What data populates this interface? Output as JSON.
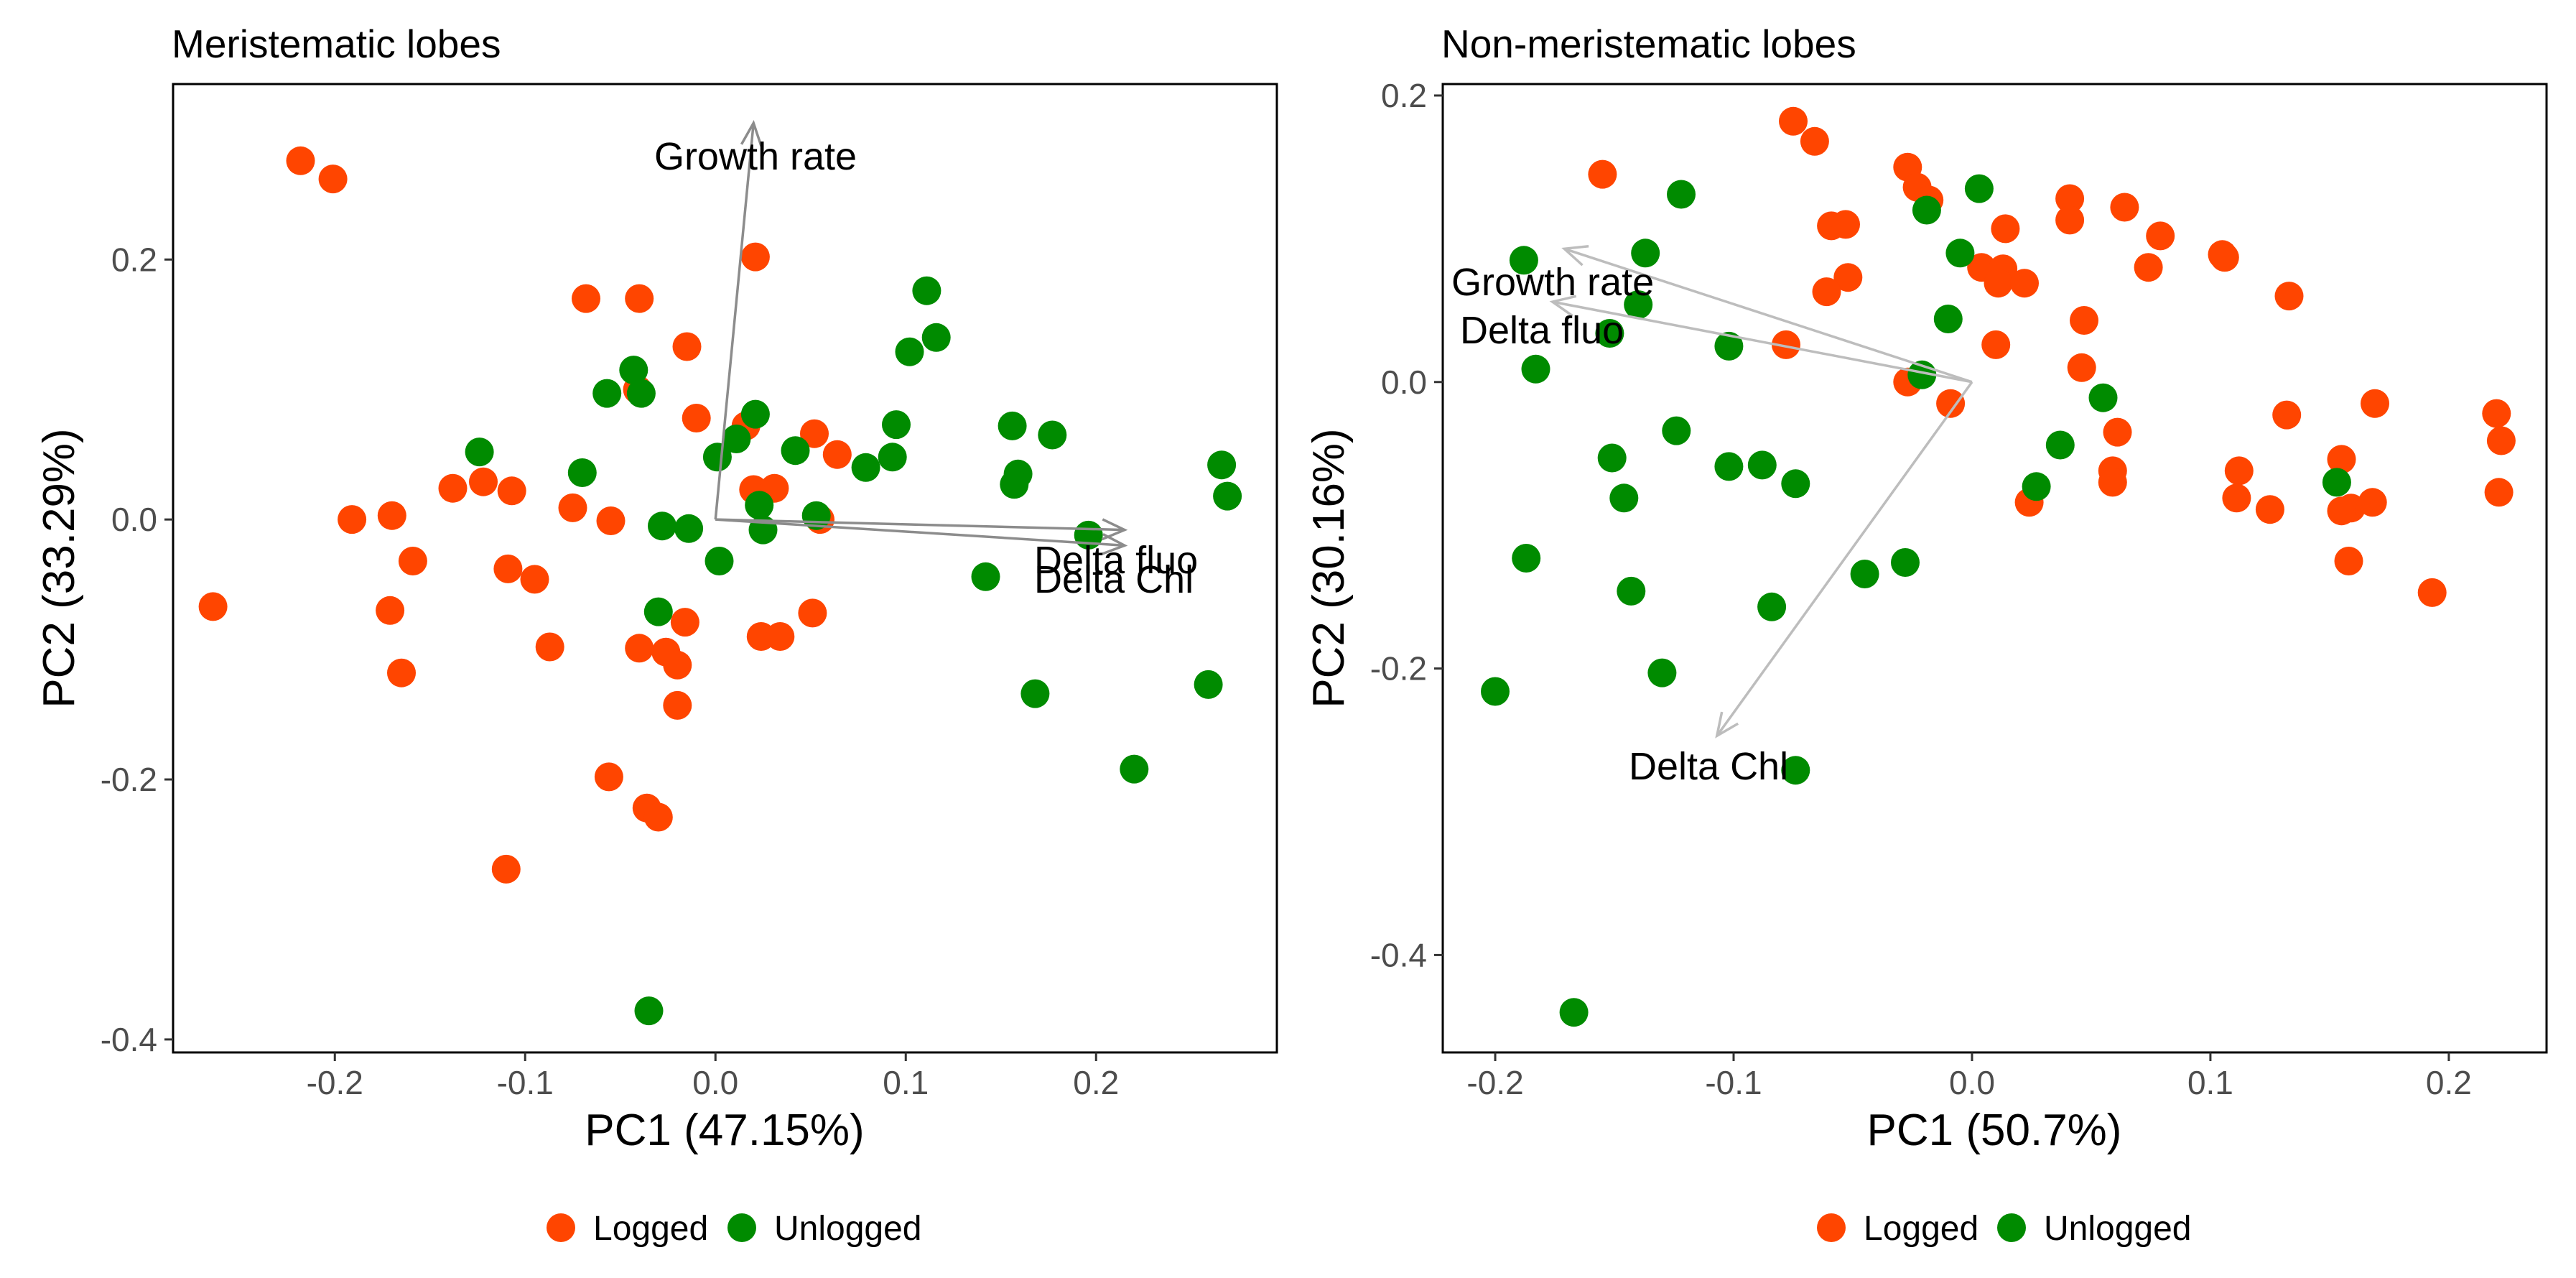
{
  "colors": {
    "logged": "#FF4500",
    "unlogged": "#008B00",
    "arrow_left": "#8c8c8c",
    "arrow_right": "#bdbdbd",
    "axis": "#000000",
    "tick_text": "#4d4d4d"
  },
  "legend": {
    "items": [
      "Logged",
      "Unlogged"
    ]
  },
  "chart_data": [
    {
      "type": "scatter",
      "title": "Meristematic lobes",
      "xlabel": "PC1 (47.15%)",
      "ylabel": "PC2 (33.29%)",
      "xlim": [
        -0.285,
        0.295
      ],
      "ylim": [
        -0.41,
        0.335
      ],
      "xticks": [
        -0.2,
        -0.1,
        0.0,
        0.1,
        0.2
      ],
      "xtick_labels": [
        "-0.2",
        "-0.1",
        "0.0",
        "0.1",
        "0.2"
      ],
      "yticks": [
        -0.4,
        -0.2,
        0.0,
        0.2
      ],
      "ytick_labels": [
        "-0.4",
        "-0.2",
        "0.0",
        "0.2"
      ],
      "grid": false,
      "legend_position": "bottom",
      "series": [
        {
          "name": "Logged",
          "points": [
            [
              -0.218,
              0.276
            ],
            [
              -0.201,
              0.262
            ],
            [
              0.021,
              0.202
            ],
            [
              -0.068,
              0.17
            ],
            [
              -0.04,
              0.17
            ],
            [
              -0.015,
              0.133
            ],
            [
              -0.041,
              0.1
            ],
            [
              -0.01,
              0.078
            ],
            [
              0.016,
              0.072
            ],
            [
              0.052,
              0.066
            ],
            [
              0.064,
              0.05
            ],
            [
              -0.138,
              0.024
            ],
            [
              -0.122,
              0.029
            ],
            [
              -0.107,
              0.022
            ],
            [
              0.02,
              0.023
            ],
            [
              0.031,
              0.024
            ],
            [
              -0.075,
              0.009
            ],
            [
              -0.191,
              0.0
            ],
            [
              -0.17,
              0.003
            ],
            [
              -0.055,
              -0.001
            ],
            [
              0.055,
              0.0
            ],
            [
              -0.159,
              -0.032
            ],
            [
              -0.109,
              -0.038
            ],
            [
              -0.095,
              -0.046
            ],
            [
              -0.171,
              -0.07
            ],
            [
              -0.264,
              -0.067
            ],
            [
              -0.016,
              -0.079
            ],
            [
              0.051,
              -0.072
            ],
            [
              -0.087,
              -0.098
            ],
            [
              -0.04,
              -0.099
            ],
            [
              -0.026,
              -0.102
            ],
            [
              -0.02,
              -0.112
            ],
            [
              0.024,
              -0.09
            ],
            [
              0.034,
              -0.09
            ],
            [
              -0.165,
              -0.118
            ],
            [
              -0.02,
              -0.143
            ],
            [
              -0.056,
              -0.198
            ],
            [
              -0.036,
              -0.222
            ],
            [
              -0.03,
              -0.229
            ],
            [
              -0.11,
              -0.269
            ]
          ]
        },
        {
          "name": "Unlogged",
          "points": [
            [
              0.111,
              0.176
            ],
            [
              0.116,
              0.14
            ],
            [
              0.102,
              0.129
            ],
            [
              -0.043,
              0.115
            ],
            [
              -0.057,
              0.097
            ],
            [
              -0.039,
              0.097
            ],
            [
              0.021,
              0.081
            ],
            [
              0.011,
              0.062
            ],
            [
              0.095,
              0.073
            ],
            [
              0.156,
              0.072
            ],
            [
              0.177,
              0.065
            ],
            [
              0.042,
              0.053
            ],
            [
              0.001,
              0.048
            ],
            [
              0.093,
              0.048
            ],
            [
              0.079,
              0.04
            ],
            [
              0.159,
              0.035
            ],
            [
              0.157,
              0.027
            ],
            [
              -0.124,
              0.052
            ],
            [
              -0.07,
              0.036
            ],
            [
              0.266,
              0.042
            ],
            [
              0.269,
              0.018
            ],
            [
              0.023,
              0.011
            ],
            [
              0.053,
              0.003
            ],
            [
              0.025,
              -0.008
            ],
            [
              -0.028,
              -0.005
            ],
            [
              -0.014,
              -0.007
            ],
            [
              0.196,
              -0.012
            ],
            [
              0.002,
              -0.032
            ],
            [
              0.142,
              -0.044
            ],
            [
              -0.03,
              -0.071
            ],
            [
              0.168,
              -0.134
            ],
            [
              0.259,
              -0.127
            ],
            [
              0.22,
              -0.192
            ],
            [
              -0.035,
              -0.378
            ]
          ]
        }
      ],
      "loadings": [
        {
          "label": "Growth rate",
          "x": 0.02,
          "y": 0.305
        },
        {
          "label": "Delta fluo",
          "x": 0.215,
          "y": -0.008
        },
        {
          "label": "Delta Chl",
          "x": 0.215,
          "y": -0.02
        }
      ]
    },
    {
      "type": "scatter",
      "title": "Non-meristematic lobes",
      "xlabel": "PC1 (50.7%)",
      "ylabel": "PC2 (30.16%)",
      "xlim": [
        -0.222,
        0.241
      ],
      "ylim": [
        -0.468,
        0.208
      ],
      "xticks": [
        -0.2,
        -0.1,
        0.0,
        0.1,
        0.2
      ],
      "xtick_labels": [
        "-0.2",
        "-0.1",
        "0.0",
        "0.1",
        "0.2"
      ],
      "yticks": [
        -0.4,
        -0.2,
        0.0,
        0.2
      ],
      "ytick_labels": [
        "-0.4",
        "-0.2",
        "0.0",
        "0.2"
      ],
      "grid": false,
      "legend_position": "bottom",
      "series": [
        {
          "name": "Logged",
          "points": [
            [
              -0.075,
              0.182
            ],
            [
              -0.066,
              0.168
            ],
            [
              -0.155,
              0.145
            ],
            [
              -0.027,
              0.15
            ],
            [
              -0.023,
              0.136
            ],
            [
              -0.018,
              0.127
            ],
            [
              0.041,
              0.128
            ],
            [
              0.064,
              0.122
            ],
            [
              0.041,
              0.113
            ],
            [
              -0.059,
              0.109
            ],
            [
              -0.053,
              0.11
            ],
            [
              0.014,
              0.107
            ],
            [
              0.079,
              0.102
            ],
            [
              0.105,
              0.089
            ],
            [
              0.106,
              0.087
            ],
            [
              0.004,
              0.08
            ],
            [
              0.013,
              0.079
            ],
            [
              0.074,
              0.08
            ],
            [
              0.011,
              0.069
            ],
            [
              0.022,
              0.069
            ],
            [
              -0.052,
              0.073
            ],
            [
              -0.061,
              0.063
            ],
            [
              0.133,
              0.06
            ],
            [
              0.047,
              0.043
            ],
            [
              -0.078,
              0.026
            ],
            [
              0.01,
              0.026
            ],
            [
              0.046,
              0.01
            ],
            [
              -0.027,
              0.0
            ],
            [
              -0.009,
              -0.015
            ],
            [
              0.169,
              -0.015
            ],
            [
              0.132,
              -0.023
            ],
            [
              0.061,
              -0.035
            ],
            [
              0.22,
              -0.022
            ],
            [
              0.222,
              -0.041
            ],
            [
              0.155,
              -0.054
            ],
            [
              0.059,
              -0.062
            ],
            [
              0.059,
              -0.07
            ],
            [
              0.112,
              -0.062
            ],
            [
              0.111,
              -0.081
            ],
            [
              0.125,
              -0.089
            ],
            [
              0.159,
              -0.088
            ],
            [
              0.168,
              -0.084
            ],
            [
              0.155,
              -0.09
            ],
            [
              0.221,
              -0.077
            ],
            [
              0.024,
              -0.084
            ],
            [
              0.158,
              -0.125
            ],
            [
              0.193,
              -0.147
            ]
          ]
        },
        {
          "name": "Unlogged",
          "points": [
            [
              0.003,
              0.135
            ],
            [
              -0.122,
              0.131
            ],
            [
              -0.019,
              0.12
            ],
            [
              -0.137,
              0.09
            ],
            [
              -0.005,
              0.09
            ],
            [
              -0.188,
              0.085
            ],
            [
              -0.14,
              0.054
            ],
            [
              -0.01,
              0.044
            ],
            [
              -0.152,
              0.034
            ],
            [
              -0.102,
              0.025
            ],
            [
              -0.183,
              0.009
            ],
            [
              -0.021,
              0.005
            ],
            [
              0.055,
              -0.011
            ],
            [
              -0.124,
              -0.034
            ],
            [
              0.037,
              -0.044
            ],
            [
              -0.151,
              -0.053
            ],
            [
              -0.102,
              -0.059
            ],
            [
              -0.088,
              -0.058
            ],
            [
              -0.074,
              -0.071
            ],
            [
              0.027,
              -0.073
            ],
            [
              0.153,
              -0.07
            ],
            [
              -0.146,
              -0.081
            ],
            [
              -0.187,
              -0.123
            ],
            [
              -0.028,
              -0.126
            ],
            [
              -0.045,
              -0.134
            ],
            [
              -0.143,
              -0.146
            ],
            [
              -0.084,
              -0.157
            ],
            [
              -0.13,
              -0.203
            ],
            [
              -0.2,
              -0.216
            ],
            [
              -0.074,
              -0.271
            ],
            [
              -0.167,
              -0.44
            ]
          ]
        }
      ],
      "loadings": [
        {
          "label": "Growth rate",
          "x": -0.171,
          "y": 0.093
        },
        {
          "label": "Delta fluo",
          "x": -0.176,
          "y": 0.056
        },
        {
          "label": "Delta Chl",
          "x": -0.107,
          "y": -0.247
        }
      ]
    }
  ]
}
